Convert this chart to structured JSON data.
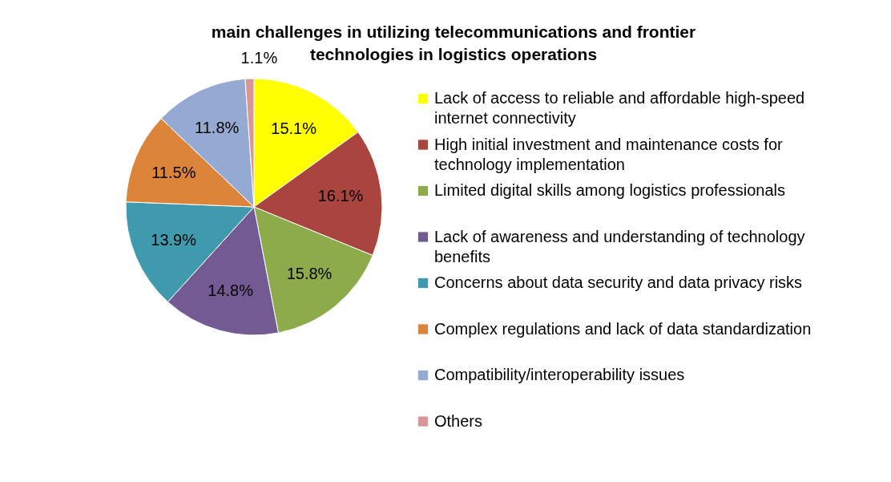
{
  "chart_data": {
    "type": "pie",
    "title": "main challenges in utilizing telecommunications and frontier technologies  in logistics operations",
    "categories": [
      "Lack of access to reliable and affordable high-speed internet connectivity",
      "High initial investment and maintenance costs for technology implementation",
      "Limited digital skills among logistics professionals",
      "Lack of awareness and understanding of technology benefits",
      "Concerns about data security and data privacy risks",
      "Complex regulations and lack of data standardization",
      "Compatibility/interoperability issues",
      "Others"
    ],
    "values": [
      15.1,
      16.1,
      15.8,
      14.8,
      13.9,
      11.5,
      11.8,
      1.1
    ],
    "colors": [
      "#ffff00",
      "#a9443f",
      "#8eab4c",
      "#735a92",
      "#3f9aae",
      "#dc843a",
      "#94aad2",
      "#d99694"
    ],
    "value_labels": [
      "15.1%",
      "16.1%",
      "15.8%",
      "14.8%",
      "13.9%",
      "11.5%",
      "11.8%",
      "1.1%"
    ],
    "legend": "right"
  }
}
